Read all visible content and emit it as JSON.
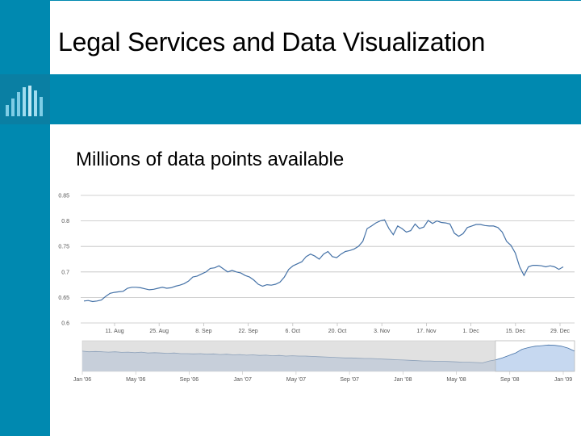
{
  "slide": {
    "title": "Legal Services and Data Visualization",
    "subtitle": "Millions of data points available"
  },
  "colors": {
    "accent": "#0089b0",
    "line": "#4572a7",
    "navigator_fill": "#c6d8f0",
    "navigator_mask": "#c8c8c8",
    "grid": "#c0c0c0"
  },
  "icons": [
    "bar-chart-logo-icon"
  ],
  "chart_data": {
    "type": "line",
    "title": "",
    "xlabel": "",
    "ylabel": "",
    "grid": true,
    "ylim": [
      0.6,
      0.85
    ],
    "y_ticks": [
      "0.6",
      "0.65",
      "0.7",
      "0.75",
      "0.8",
      "0.85"
    ],
    "x_ticks": [
      "11. Aug",
      "25. Aug",
      "8. Sep",
      "22. Sep",
      "6. Oct",
      "20. Oct",
      "3. Nov",
      "17. Nov",
      "1. Dec",
      "15. Dec",
      "29. Dec"
    ],
    "series": [
      {
        "values": [
          0.643,
          0.644,
          0.642,
          0.643,
          0.645,
          0.652,
          0.658,
          0.66,
          0.661,
          0.662,
          0.668,
          0.67,
          0.67,
          0.669,
          0.667,
          0.665,
          0.666,
          0.668,
          0.67,
          0.668,
          0.669,
          0.672,
          0.674,
          0.677,
          0.682,
          0.69,
          0.692,
          0.696,
          0.7,
          0.707,
          0.708,
          0.712,
          0.706,
          0.7,
          0.703,
          0.7,
          0.698,
          0.693,
          0.69,
          0.684,
          0.676,
          0.672,
          0.675,
          0.674,
          0.676,
          0.68,
          0.69,
          0.705,
          0.712,
          0.716,
          0.72,
          0.73,
          0.735,
          0.731,
          0.725,
          0.735,
          0.74,
          0.73,
          0.728,
          0.735,
          0.74,
          0.742,
          0.745,
          0.75,
          0.76,
          0.785,
          0.79,
          0.796,
          0.8,
          0.802,
          0.785,
          0.773,
          0.79,
          0.785,
          0.778,
          0.781,
          0.794,
          0.785,
          0.788,
          0.801,
          0.795,
          0.8,
          0.797,
          0.796,
          0.794,
          0.776,
          0.77,
          0.775,
          0.787,
          0.79,
          0.793,
          0.793,
          0.791,
          0.79,
          0.79,
          0.787,
          0.778,
          0.76,
          0.752,
          0.737,
          0.71,
          0.693,
          0.71,
          0.713,
          0.713,
          0.712,
          0.71,
          0.712,
          0.71,
          0.705,
          0.71
        ]
      }
    ],
    "navigator": {
      "x_ticks": [
        "Jan '06",
        "May '06",
        "Sep '06",
        "Jan '07",
        "May '07",
        "Sep '07",
        "Jan '08",
        "May '08",
        "Sep '08",
        "Jan '09"
      ],
      "values": [
        0.66,
        0.64,
        0.65,
        0.64,
        0.63,
        0.64,
        0.62,
        0.63,
        0.61,
        0.63,
        0.6,
        0.61,
        0.6,
        0.59,
        0.6,
        0.58,
        0.58,
        0.57,
        0.58,
        0.56,
        0.57,
        0.55,
        0.56,
        0.54,
        0.55,
        0.53,
        0.54,
        0.52,
        0.53,
        0.51,
        0.52,
        0.5,
        0.51,
        0.5,
        0.5,
        0.49,
        0.48,
        0.47,
        0.46,
        0.45,
        0.44,
        0.44,
        0.43,
        0.42,
        0.42,
        0.41,
        0.4,
        0.39,
        0.38,
        0.37,
        0.36,
        0.35,
        0.34,
        0.34,
        0.33,
        0.33,
        0.32,
        0.31,
        0.3,
        0.3,
        0.29,
        0.28,
        0.34,
        0.38,
        0.44,
        0.52,
        0.6,
        0.72,
        0.78,
        0.82,
        0.84,
        0.86,
        0.85,
        0.82,
        0.76,
        0.66
      ],
      "selected_range": [
        "Aug '08",
        "Jan '09"
      ]
    }
  }
}
